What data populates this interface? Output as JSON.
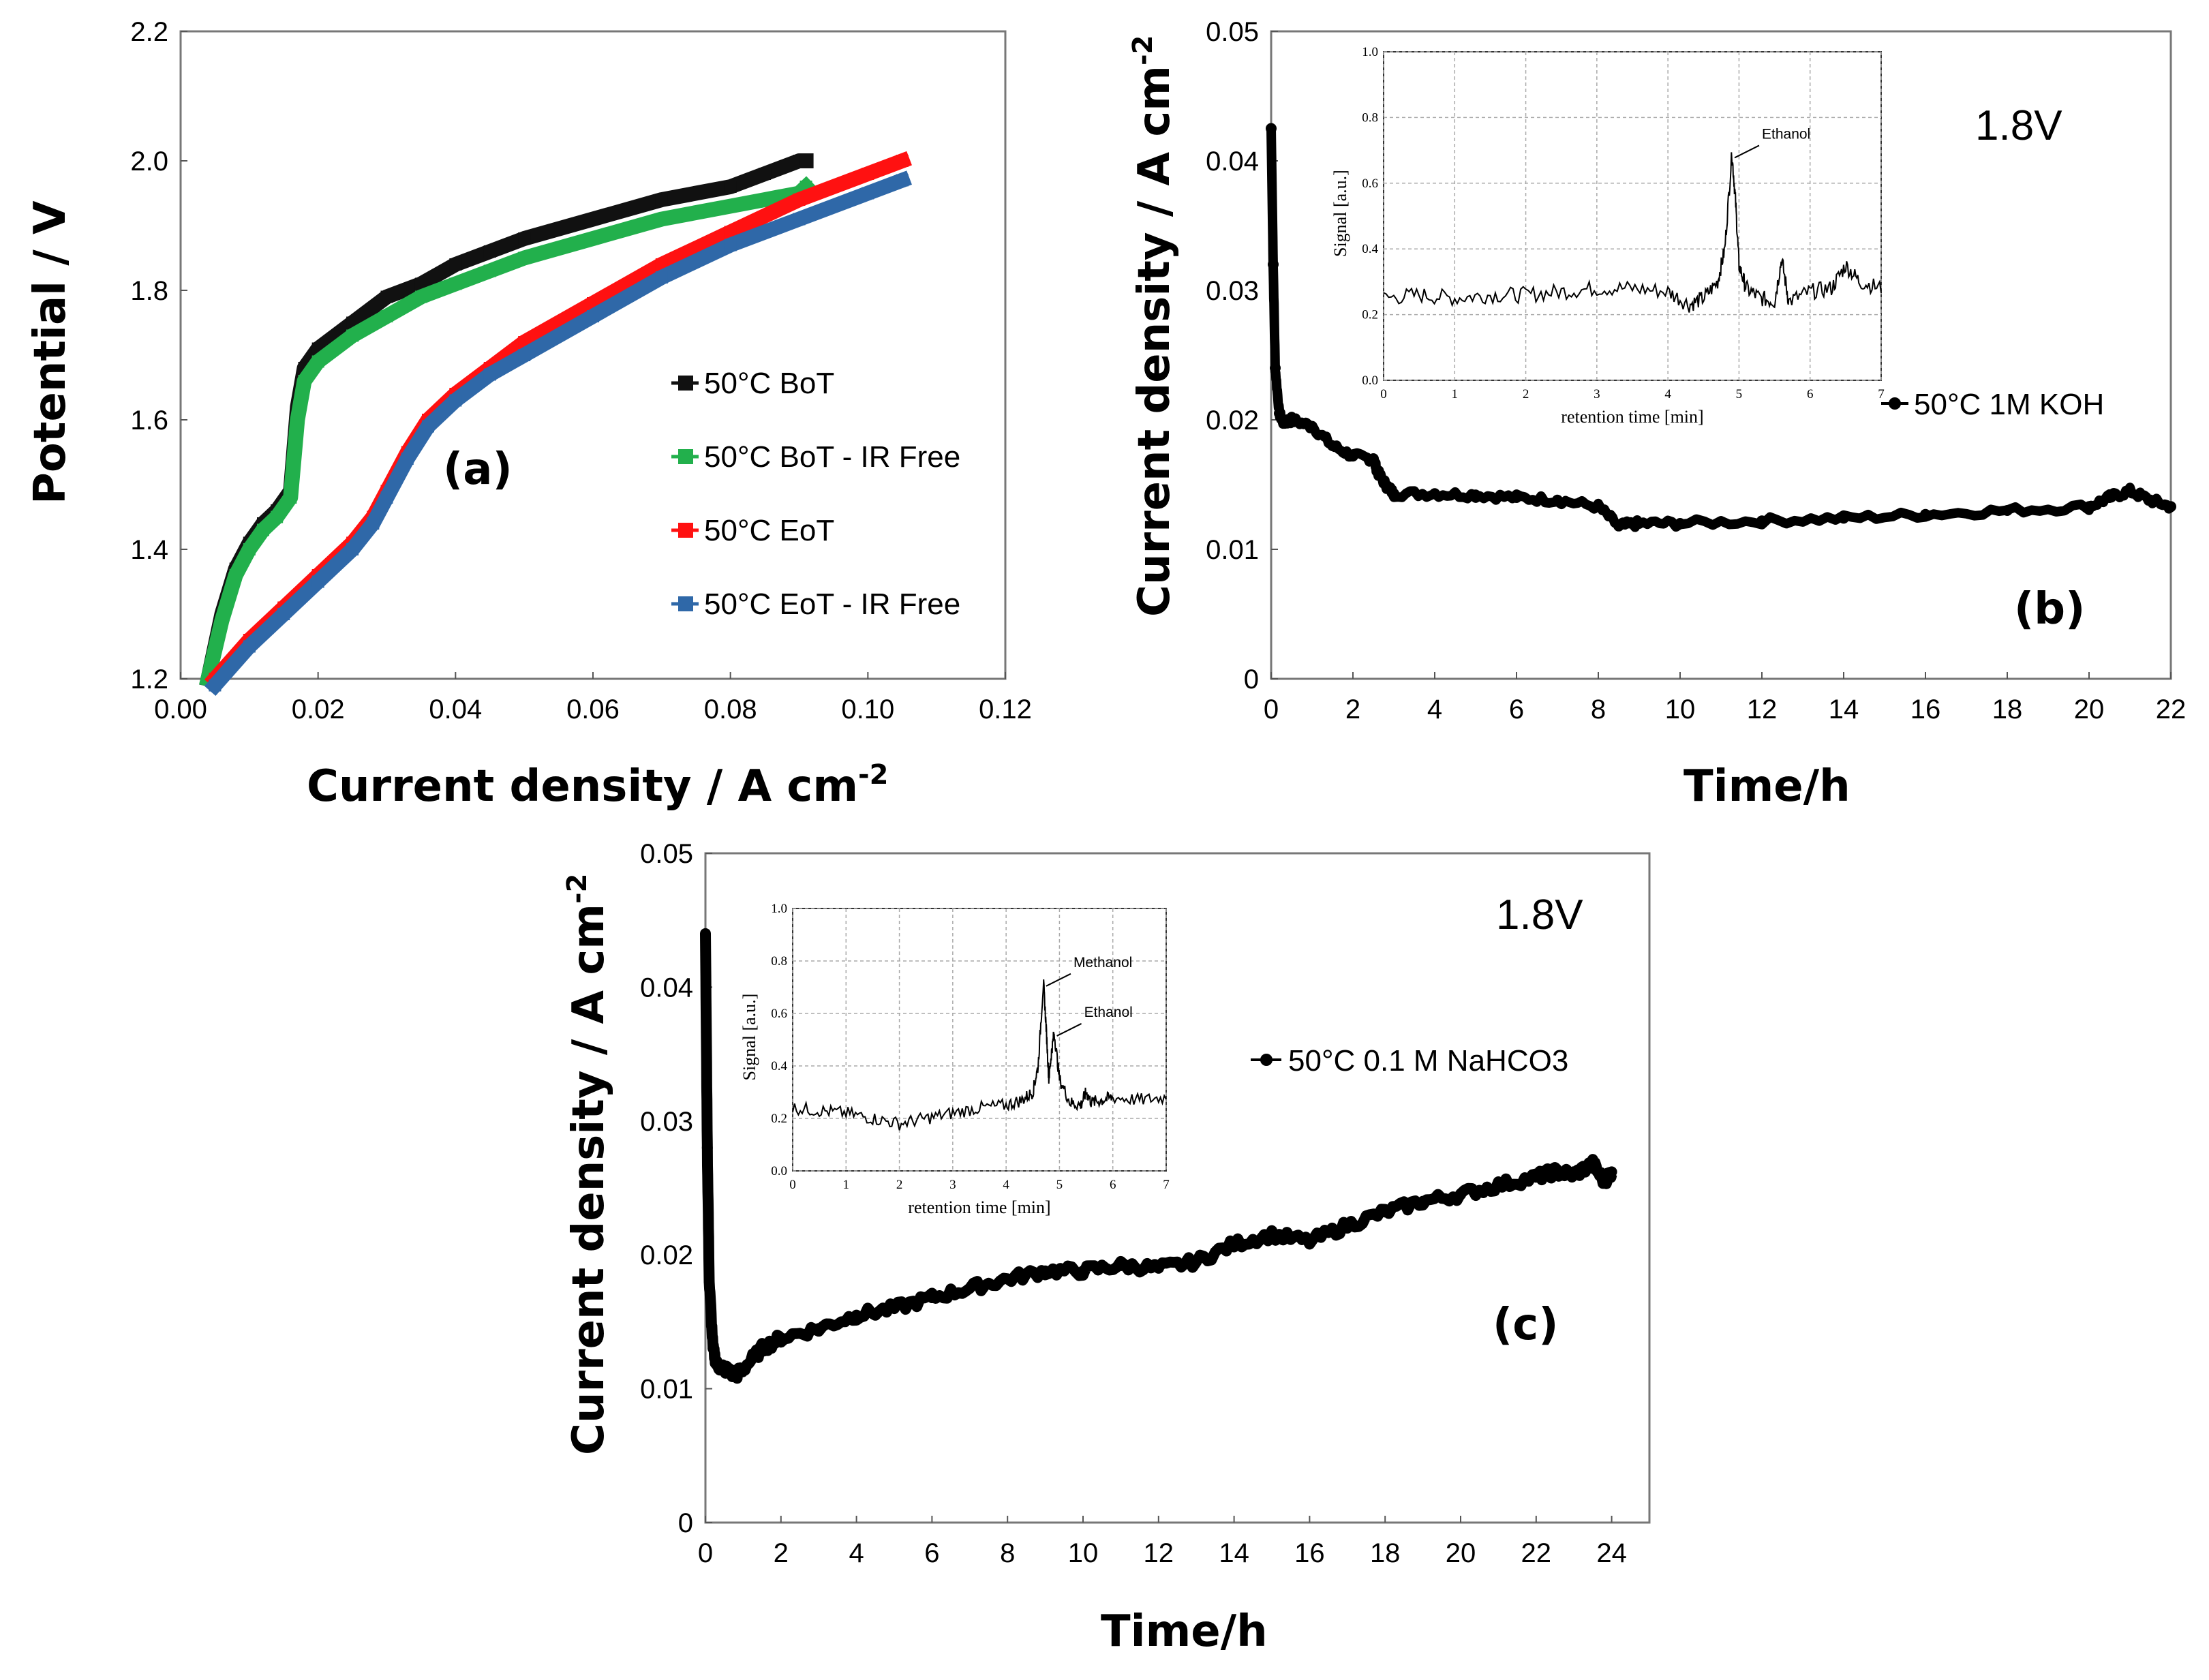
{
  "chart_data": [
    {
      "id": "a",
      "type": "line",
      "panel_label": "(a)",
      "xlabel": "Current density  / A cm",
      "xlabel_sup": "-2",
      "ylabel": "Potential  / V",
      "xlim": [
        0.0,
        0.12
      ],
      "ylim": [
        1.2,
        2.2
      ],
      "x_ticks": [
        "0.00",
        "0.02",
        "0.04",
        "0.06",
        "0.08",
        "0.10",
        "0.12"
      ],
      "y_ticks": [
        "1.2",
        "1.4",
        "1.6",
        "1.8",
        "2.0",
        "2.2"
      ],
      "legend_position": "center-right",
      "series": [
        {
          "name": "50°C  BoT",
          "color": "#111111",
          "marker": "square",
          "x": [
            0.004,
            0.006,
            0.008,
            0.01,
            0.012,
            0.014,
            0.016,
            0.017,
            0.018,
            0.02,
            0.025,
            0.03,
            0.035,
            0.04,
            0.045,
            0.05,
            0.06,
            0.07,
            0.08,
            0.085,
            0.09,
            0.091
          ],
          "y": [
            1.2,
            1.3,
            1.37,
            1.41,
            1.44,
            1.46,
            1.49,
            1.62,
            1.68,
            1.71,
            1.75,
            1.79,
            1.81,
            1.84,
            1.86,
            1.88,
            1.91,
            1.94,
            1.96,
            1.98,
            2.0,
            2.0
          ]
        },
        {
          "name": "50°C BoT - IR Free",
          "color": "#22b04c",
          "marker": "square",
          "x": [
            0.004,
            0.006,
            0.008,
            0.01,
            0.012,
            0.014,
            0.016,
            0.017,
            0.018,
            0.02,
            0.025,
            0.03,
            0.035,
            0.04,
            0.045,
            0.05,
            0.06,
            0.07,
            0.08,
            0.085,
            0.09,
            0.091
          ],
          "y": [
            1.2,
            1.29,
            1.36,
            1.4,
            1.43,
            1.45,
            1.48,
            1.6,
            1.66,
            1.69,
            1.73,
            1.76,
            1.79,
            1.81,
            1.83,
            1.85,
            1.88,
            1.91,
            1.93,
            1.94,
            1.95,
            1.96
          ]
        },
        {
          "name": "50°C EoT",
          "color": "#ff1111",
          "marker": "square",
          "x": [
            0.005,
            0.01,
            0.015,
            0.02,
            0.025,
            0.028,
            0.03,
            0.033,
            0.036,
            0.04,
            0.045,
            0.05,
            0.06,
            0.07,
            0.08,
            0.09,
            0.1,
            0.105
          ],
          "y": [
            1.2,
            1.26,
            1.31,
            1.36,
            1.41,
            1.45,
            1.49,
            1.55,
            1.6,
            1.64,
            1.68,
            1.72,
            1.78,
            1.84,
            1.89,
            1.94,
            1.98,
            2.0
          ]
        },
        {
          "name": "50°C EoT - IR Free",
          "color": "#2f68a8",
          "marker": "square",
          "x": [
            0.005,
            0.01,
            0.015,
            0.02,
            0.025,
            0.028,
            0.03,
            0.033,
            0.036,
            0.04,
            0.045,
            0.05,
            0.06,
            0.07,
            0.08,
            0.09,
            0.1,
            0.105
          ],
          "y": [
            1.19,
            1.25,
            1.3,
            1.35,
            1.4,
            1.44,
            1.48,
            1.54,
            1.59,
            1.63,
            1.67,
            1.7,
            1.76,
            1.82,
            1.87,
            1.91,
            1.95,
            1.97
          ]
        }
      ]
    },
    {
      "id": "b",
      "type": "line",
      "panel_label": "(b)",
      "annotation": "1.8V",
      "xlabel": "Time/h",
      "ylabel": "Current density  / A cm",
      "ylabel_sup": "-2",
      "xlim": [
        0,
        22
      ],
      "ylim": [
        0,
        0.05
      ],
      "x_ticks": [
        "0",
        "2",
        "4",
        "6",
        "8",
        "10",
        "12",
        "14",
        "16",
        "18",
        "20",
        "22"
      ],
      "y_ticks": [
        "0",
        "0.01",
        "0.02",
        "0.03",
        "0.04",
        "0.05"
      ],
      "legend_position": "right",
      "series": [
        {
          "name": "50°C  1M KOH",
          "color": "#000000",
          "marker": "circle",
          "x": [
            0,
            0.05,
            0.1,
            0.2,
            0.3,
            0.5,
            1.0,
            1.5,
            2.0,
            2.5,
            2.6,
            2.8,
            3.0,
            4.0,
            5.0,
            6.0,
            7.0,
            8.0,
            8.5,
            9.0,
            10,
            12,
            14,
            16,
            18,
            20,
            20.5,
            21,
            21.5,
            22
          ],
          "y": [
            0.0425,
            0.032,
            0.024,
            0.0205,
            0.0198,
            0.02,
            0.0195,
            0.018,
            0.0172,
            0.017,
            0.016,
            0.015,
            0.0143,
            0.0143,
            0.0142,
            0.014,
            0.0138,
            0.0133,
            0.0118,
            0.012,
            0.012,
            0.0122,
            0.0124,
            0.0127,
            0.013,
            0.0133,
            0.014,
            0.0145,
            0.0138,
            0.0133
          ]
        }
      ],
      "inset": {
        "type": "line",
        "xlabel": "retention time [min]",
        "ylabel": "Signal [a.u.]",
        "xlim": [
          0,
          7
        ],
        "ylim": [
          0.0,
          1.0
        ],
        "x_ticks": [
          "0",
          "1",
          "2",
          "3",
          "4",
          "5",
          "6",
          "7"
        ],
        "y_ticks": [
          "0.0",
          "0.2",
          "0.4",
          "0.6",
          "0.8",
          "1.0"
        ],
        "annotations": [
          {
            "label": "Ethanol",
            "x": 4.9,
            "y": 0.69
          }
        ],
        "series": [
          {
            "name": "signal",
            "color": "#000000",
            "x": [
              0,
              0.5,
              1.0,
              1.5,
              2.0,
              2.5,
              3.0,
              3.5,
              4.0,
              4.3,
              4.5,
              4.7,
              4.8,
              4.9,
              4.95,
              5.0,
              5.1,
              5.3,
              5.5,
              5.6,
              5.7,
              6.0,
              6.3,
              6.5,
              6.7,
              7.0
            ],
            "y": [
              0.25,
              0.26,
              0.25,
              0.26,
              0.26,
              0.27,
              0.28,
              0.28,
              0.27,
              0.23,
              0.25,
              0.3,
              0.4,
              0.69,
              0.55,
              0.35,
              0.28,
              0.25,
              0.24,
              0.37,
              0.24,
              0.27,
              0.28,
              0.35,
              0.3,
              0.28
            ]
          }
        ]
      }
    },
    {
      "id": "c",
      "type": "line",
      "panel_label": "(c)",
      "annotation": "1.8V",
      "xlabel": "Time/h",
      "ylabel": "Current density  / A cm",
      "ylabel_sup": "-2",
      "xlim": [
        0,
        25
      ],
      "ylim": [
        0,
        0.05
      ],
      "x_ticks": [
        "0",
        "2",
        "4",
        "6",
        "8",
        "10",
        "12",
        "14",
        "16",
        "18",
        "20",
        "22",
        "24"
      ],
      "y_ticks": [
        "0",
        "0.01",
        "0.02",
        "0.03",
        "0.04",
        "0.05"
      ],
      "legend_position": "right",
      "series": [
        {
          "name": "50°C 0.1 M NaHCO3",
          "color": "#000000",
          "marker": "circle",
          "x": [
            0,
            0.05,
            0.1,
            0.2,
            0.3,
            0.5,
            0.8,
            1.0,
            1.5,
            2.0,
            3.0,
            4.0,
            5.0,
            6.0,
            7.0,
            8.0,
            9.0,
            10,
            11,
            12,
            13,
            14,
            15,
            16,
            17,
            18,
            19,
            20,
            21,
            22,
            22.5,
            23,
            23.5,
            23.8,
            24
          ],
          "y": [
            0.044,
            0.028,
            0.018,
            0.013,
            0.0118,
            0.0115,
            0.011,
            0.0115,
            0.013,
            0.0138,
            0.0145,
            0.0155,
            0.016,
            0.0168,
            0.0175,
            0.0182,
            0.0188,
            0.0188,
            0.0192,
            0.019,
            0.0195,
            0.0208,
            0.0215,
            0.021,
            0.0222,
            0.0232,
            0.024,
            0.0245,
            0.0252,
            0.0258,
            0.0262,
            0.026,
            0.0268,
            0.0255,
            0.0262
          ]
        }
      ],
      "inset": {
        "type": "line",
        "xlabel": "retention time [min]",
        "ylabel": "Signal [a.u.]",
        "xlim": [
          0,
          7
        ],
        "ylim": [
          0.0,
          1.0
        ],
        "x_ticks": [
          "0",
          "1",
          "2",
          "3",
          "4",
          "5",
          "6",
          "7"
        ],
        "y_ticks": [
          "0.0",
          "0.2",
          "0.4",
          "0.6",
          "0.8",
          "1.0"
        ],
        "annotations": [
          {
            "label": "Methanol",
            "x": 4.7,
            "y": 0.72
          },
          {
            "label": "Ethanol",
            "x": 4.9,
            "y": 0.53
          }
        ],
        "series": [
          {
            "name": "signal",
            "color": "#000000",
            "x": [
              0,
              0.5,
              1.0,
              1.5,
              2.0,
              2.5,
              3.0,
              3.5,
              4.0,
              4.3,
              4.5,
              4.6,
              4.7,
              4.75,
              4.8,
              4.85,
              4.9,
              5.0,
              5.2,
              5.4,
              5.5,
              5.6,
              5.8,
              6.0,
              6.5,
              7.0
            ],
            "y": [
              0.24,
              0.23,
              0.22,
              0.2,
              0.18,
              0.2,
              0.22,
              0.24,
              0.25,
              0.27,
              0.3,
              0.4,
              0.72,
              0.55,
              0.35,
              0.45,
              0.53,
              0.35,
              0.26,
              0.25,
              0.3,
              0.26,
              0.27,
              0.28,
              0.27,
              0.28
            ]
          }
        ]
      }
    }
  ]
}
